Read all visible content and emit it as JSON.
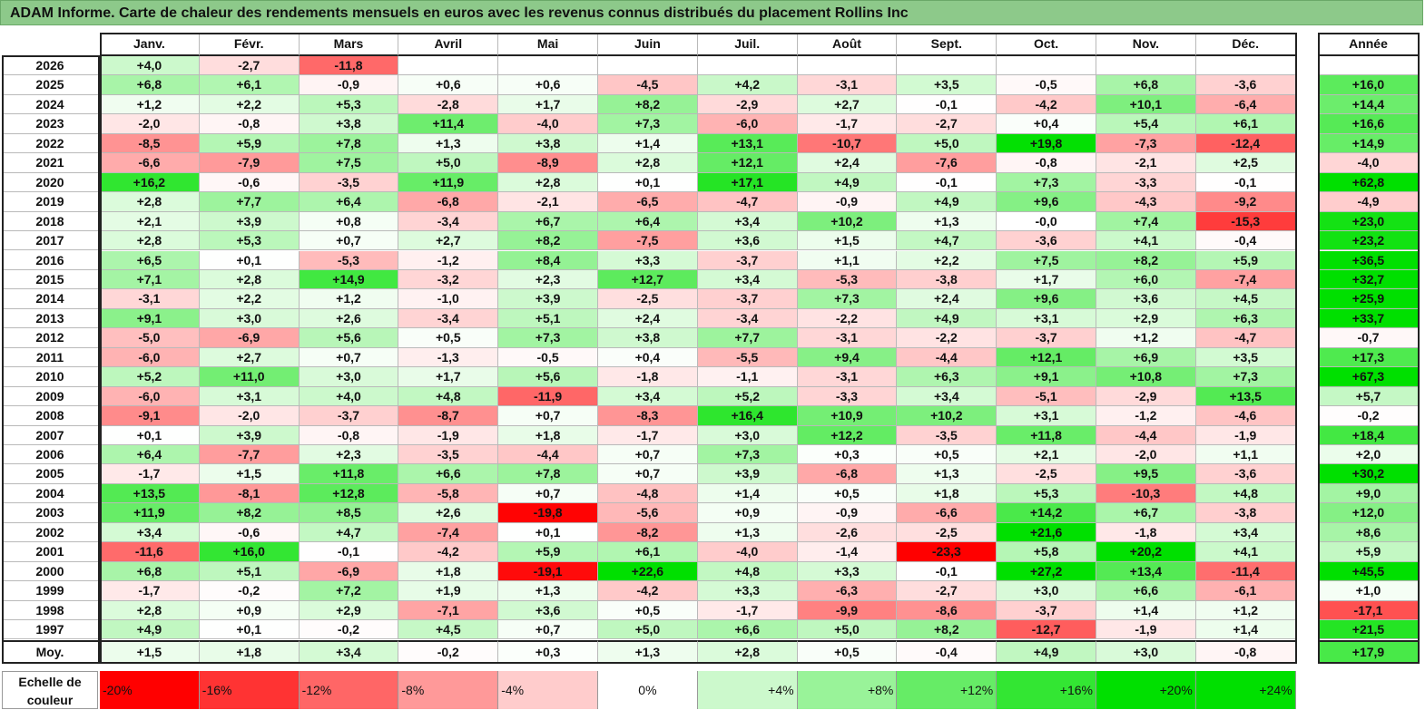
{
  "title": "ADAM Informe. Carte de chaleur des rendements mensuels en euros avec les revenus connus distribués du placement Rollins Inc",
  "chart_data": {
    "type": "heatmap",
    "months": [
      "Janv.",
      "Févr.",
      "Mars",
      "Avril",
      "Mai",
      "Juin",
      "Juil.",
      "Août",
      "Sept.",
      "Oct.",
      "Nov.",
      "Déc."
    ],
    "year_header": "Année",
    "rows": [
      {
        "year": "2026",
        "months": [
          "+4,0",
          "-2,7",
          "-11,8",
          "",
          "",
          "",
          "",
          "",
          "",
          "",
          "",
          ""
        ],
        "annual": ""
      },
      {
        "year": "2025",
        "months": [
          "+6,8",
          "+6,1",
          "-0,9",
          "+0,6",
          "+0,6",
          "-4,5",
          "+4,2",
          "-3,1",
          "+3,5",
          "-0,5",
          "+6,8",
          "-3,6"
        ],
        "annual": "+16,0"
      },
      {
        "year": "2024",
        "months": [
          "+1,2",
          "+2,2",
          "+5,3",
          "-2,8",
          "+1,7",
          "+8,2",
          "-2,9",
          "+2,7",
          "-0,1",
          "-4,2",
          "+10,1",
          "-6,4"
        ],
        "annual": "+14,4"
      },
      {
        "year": "2023",
        "months": [
          "-2,0",
          "-0,8",
          "+3,8",
          "+11,4",
          "-4,0",
          "+7,3",
          "-6,0",
          "-1,7",
          "-2,7",
          "+0,4",
          "+5,4",
          "+6,1"
        ],
        "annual": "+16,6"
      },
      {
        "year": "2022",
        "months": [
          "-8,5",
          "+5,9",
          "+7,8",
          "+1,3",
          "+3,8",
          "+1,4",
          "+13,1",
          "-10,7",
          "+5,0",
          "+19,8",
          "-7,3",
          "-12,4"
        ],
        "annual": "+14,9"
      },
      {
        "year": "2021",
        "months": [
          "-6,6",
          "-7,9",
          "+7,5",
          "+5,0",
          "-8,9",
          "+2,8",
          "+12,1",
          "+2,4",
          "-7,6",
          "-0,8",
          "-2,1",
          "+2,5"
        ],
        "annual": "-4,0"
      },
      {
        "year": "2020",
        "months": [
          "+16,2",
          "-0,6",
          "-3,5",
          "+11,9",
          "+2,8",
          "+0,1",
          "+17,1",
          "+4,9",
          "-0,1",
          "+7,3",
          "-3,3",
          "-0,1"
        ],
        "annual": "+62,8"
      },
      {
        "year": "2019",
        "months": [
          "+2,8",
          "+7,7",
          "+6,4",
          "-6,8",
          "-2,1",
          "-6,5",
          "-4,7",
          "-0,9",
          "+4,9",
          "+9,6",
          "-4,3",
          "-9,2"
        ],
        "annual": "-4,9"
      },
      {
        "year": "2018",
        "months": [
          "+2,1",
          "+3,9",
          "+0,8",
          "-3,4",
          "+6,7",
          "+6,4",
          "+3,4",
          "+10,2",
          "+1,3",
          "-0,0",
          "+7,4",
          "-15,3"
        ],
        "annual": "+23,0"
      },
      {
        "year": "2017",
        "months": [
          "+2,8",
          "+5,3",
          "+0,7",
          "+2,7",
          "+8,2",
          "-7,5",
          "+3,6",
          "+1,5",
          "+4,7",
          "-3,6",
          "+4,1",
          "-0,4"
        ],
        "annual": "+23,2"
      },
      {
        "year": "2016",
        "months": [
          "+6,5",
          "+0,1",
          "-5,3",
          "-1,2",
          "+8,4",
          "+3,3",
          "-3,7",
          "+1,1",
          "+2,2",
          "+7,5",
          "+8,2",
          "+5,9"
        ],
        "annual": "+36,5"
      },
      {
        "year": "2015",
        "months": [
          "+7,1",
          "+2,8",
          "+14,9",
          "-3,2",
          "+2,3",
          "+12,7",
          "+3,4",
          "-5,3",
          "-3,8",
          "+1,7",
          "+6,0",
          "-7,4"
        ],
        "annual": "+32,7"
      },
      {
        "year": "2014",
        "months": [
          "-3,1",
          "+2,2",
          "+1,2",
          "-1,0",
          "+3,9",
          "-2,5",
          "-3,7",
          "+7,3",
          "+2,4",
          "+9,6",
          "+3,6",
          "+4,5"
        ],
        "annual": "+25,9"
      },
      {
        "year": "2013",
        "months": [
          "+9,1",
          "+3,0",
          "+2,6",
          "-3,4",
          "+5,1",
          "+2,4",
          "-3,4",
          "-2,2",
          "+4,9",
          "+3,1",
          "+2,9",
          "+6,3"
        ],
        "annual": "+33,7"
      },
      {
        "year": "2012",
        "months": [
          "-5,0",
          "-6,9",
          "+5,6",
          "+0,5",
          "+7,3",
          "+3,8",
          "+7,7",
          "-3,1",
          "-2,2",
          "-3,7",
          "+1,2",
          "-4,7"
        ],
        "annual": "-0,7"
      },
      {
        "year": "2011",
        "months": [
          "-6,0",
          "+2,7",
          "+0,7",
          "-1,3",
          "-0,5",
          "+0,4",
          "-5,5",
          "+9,4",
          "-4,4",
          "+12,1",
          "+6,9",
          "+3,5"
        ],
        "annual": "+17,3"
      },
      {
        "year": "2010",
        "months": [
          "+5,2",
          "+11,0",
          "+3,0",
          "+1,7",
          "+5,6",
          "-1,8",
          "-1,1",
          "-3,1",
          "+6,3",
          "+9,1",
          "+10,8",
          "+7,3"
        ],
        "annual": "+67,3"
      },
      {
        "year": "2009",
        "months": [
          "-6,0",
          "+3,1",
          "+4,0",
          "+4,8",
          "-11,9",
          "+3,4",
          "+5,2",
          "-3,3",
          "+3,4",
          "-5,1",
          "-2,9",
          "+13,5"
        ],
        "annual": "+5,7"
      },
      {
        "year": "2008",
        "months": [
          "-9,1",
          "-2,0",
          "-3,7",
          "-8,7",
          "+0,7",
          "-8,3",
          "+16,4",
          "+10,9",
          "+10,2",
          "+3,1",
          "-1,2",
          "-4,6"
        ],
        "annual": "-0,2"
      },
      {
        "year": "2007",
        "months": [
          "+0,1",
          "+3,9",
          "-0,8",
          "-1,9",
          "+1,8",
          "-1,7",
          "+3,0",
          "+12,2",
          "-3,5",
          "+11,8",
          "-4,4",
          "-1,9"
        ],
        "annual": "+18,4"
      },
      {
        "year": "2006",
        "months": [
          "+6,4",
          "-7,7",
          "+2,3",
          "-3,5",
          "-4,4",
          "+0,7",
          "+7,3",
          "+0,3",
          "+0,5",
          "+2,1",
          "-2,0",
          "+1,1"
        ],
        "annual": "+2,0"
      },
      {
        "year": "2005",
        "months": [
          "-1,7",
          "+1,5",
          "+11,8",
          "+6,6",
          "+7,8",
          "+0,7",
          "+3,9",
          "-6,8",
          "+1,3",
          "-2,5",
          "+9,5",
          "-3,6"
        ],
        "annual": "+30,2"
      },
      {
        "year": "2004",
        "months": [
          "+13,5",
          "-8,1",
          "+12,8",
          "-5,8",
          "+0,7",
          "-4,8",
          "+1,4",
          "+0,5",
          "+1,8",
          "+5,3",
          "-10,3",
          "+4,8"
        ],
        "annual": "+9,0"
      },
      {
        "year": "2003",
        "months": [
          "+11,9",
          "+8,2",
          "+8,5",
          "+2,6",
          "-19,8",
          "-5,6",
          "+0,9",
          "-0,9",
          "-6,6",
          "+14,2",
          "+6,7",
          "-3,8"
        ],
        "annual": "+12,0"
      },
      {
        "year": "2002",
        "months": [
          "+3,4",
          "-0,6",
          "+4,7",
          "-7,4",
          "+0,1",
          "-8,2",
          "+1,3",
          "-2,6",
          "-2,5",
          "+21,6",
          "-1,8",
          "+3,4"
        ],
        "annual": "+8,6"
      },
      {
        "year": "2001",
        "months": [
          "-11,6",
          "+16,0",
          "-0,1",
          "-4,2",
          "+5,9",
          "+6,1",
          "-4,0",
          "-1,4",
          "-23,3",
          "+5,8",
          "+20,2",
          "+4,1"
        ],
        "annual": "+5,9"
      },
      {
        "year": "2000",
        "months": [
          "+6,8",
          "+5,1",
          "-6,9",
          "+1,8",
          "-19,1",
          "+22,6",
          "+4,8",
          "+3,3",
          "-0,1",
          "+27,2",
          "+13,4",
          "-11,4"
        ],
        "annual": "+45,5"
      },
      {
        "year": "1999",
        "months": [
          "-1,7",
          "-0,2",
          "+7,2",
          "+1,9",
          "+1,3",
          "-4,2",
          "+3,3",
          "-6,3",
          "-2,7",
          "+3,0",
          "+6,6",
          "-6,1"
        ],
        "annual": "+1,0"
      },
      {
        "year": "1998",
        "months": [
          "+2,8",
          "+0,9",
          "+2,9",
          "-7,1",
          "+3,6",
          "+0,5",
          "-1,7",
          "-9,9",
          "-8,6",
          "-3,7",
          "+1,4",
          "+1,2"
        ],
        "annual": "-17,1"
      },
      {
        "year": "1997",
        "months": [
          "+4,9",
          "+0,1",
          "-0,2",
          "+4,5",
          "+0,7",
          "+5,0",
          "+6,6",
          "+5,0",
          "+8,2",
          "-12,7",
          "-1,9",
          "+1,4"
        ],
        "annual": "+21,5"
      }
    ],
    "average": {
      "label": "Moy.",
      "months": [
        "+1,5",
        "+1,8",
        "+3,4",
        "-0,2",
        "+0,3",
        "+1,3",
        "+2,8",
        "+0,5",
        "-0,4",
        "+4,9",
        "+3,0",
        "-0,8"
      ],
      "annual": "+17,9"
    },
    "color_scale": {
      "label_line1": "Echelle de",
      "label_line2": "couleur",
      "steps": [
        "-20%",
        "-16%",
        "-12%",
        "-8%",
        "-4%",
        "0%",
        "+4%",
        "+8%",
        "+12%",
        "+16%",
        "+20%",
        "+24%"
      ],
      "negative_color": "#ff0000",
      "neutral_color": "#ffffff",
      "positive_color": "#00e000"
    }
  }
}
